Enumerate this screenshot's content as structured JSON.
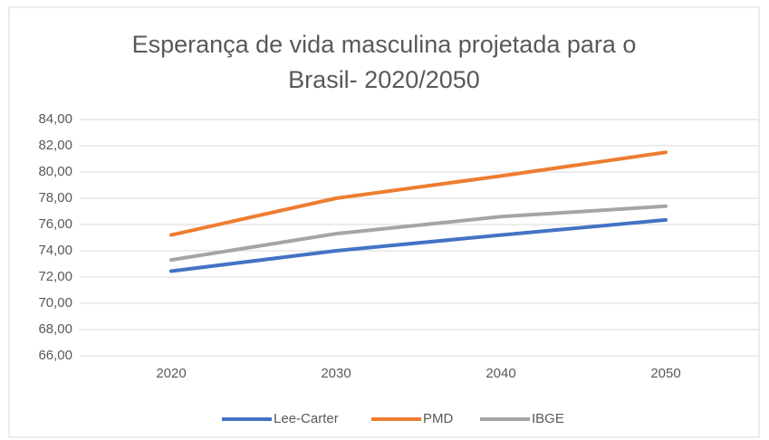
{
  "chart_data": {
    "type": "line",
    "title": "Esperança de vida masculina projetada para o Brasil- 2020/2050",
    "categories": [
      "2020",
      "2030",
      "2040",
      "2050"
    ],
    "series": [
      {
        "name": "Lee-Carter",
        "color": "#4472c4",
        "values": [
          72.45,
          74.0,
          75.2,
          76.35
        ]
      },
      {
        "name": "PMD",
        "color": "#ed7d31",
        "values": [
          75.2,
          78.0,
          79.7,
          81.5
        ]
      },
      {
        "name": "IBGE",
        "color": "#a5a5a5",
        "values": [
          73.3,
          75.3,
          76.6,
          77.4
        ]
      }
    ],
    "ylim": [
      66,
      84
    ],
    "yticks": [
      {
        "value": 66,
        "label": "66,00"
      },
      {
        "value": 68,
        "label": "68,00"
      },
      {
        "value": 70,
        "label": "70,00"
      },
      {
        "value": 72,
        "label": "72,00"
      },
      {
        "value": 74,
        "label": "74,00"
      },
      {
        "value": 76,
        "label": "76,00"
      },
      {
        "value": 78,
        "label": "78,00"
      },
      {
        "value": 80,
        "label": "80,00"
      },
      {
        "value": 82,
        "label": "82,00"
      },
      {
        "value": 84,
        "label": "84,00"
      }
    ],
    "grid": true,
    "legend": "bottom"
  }
}
